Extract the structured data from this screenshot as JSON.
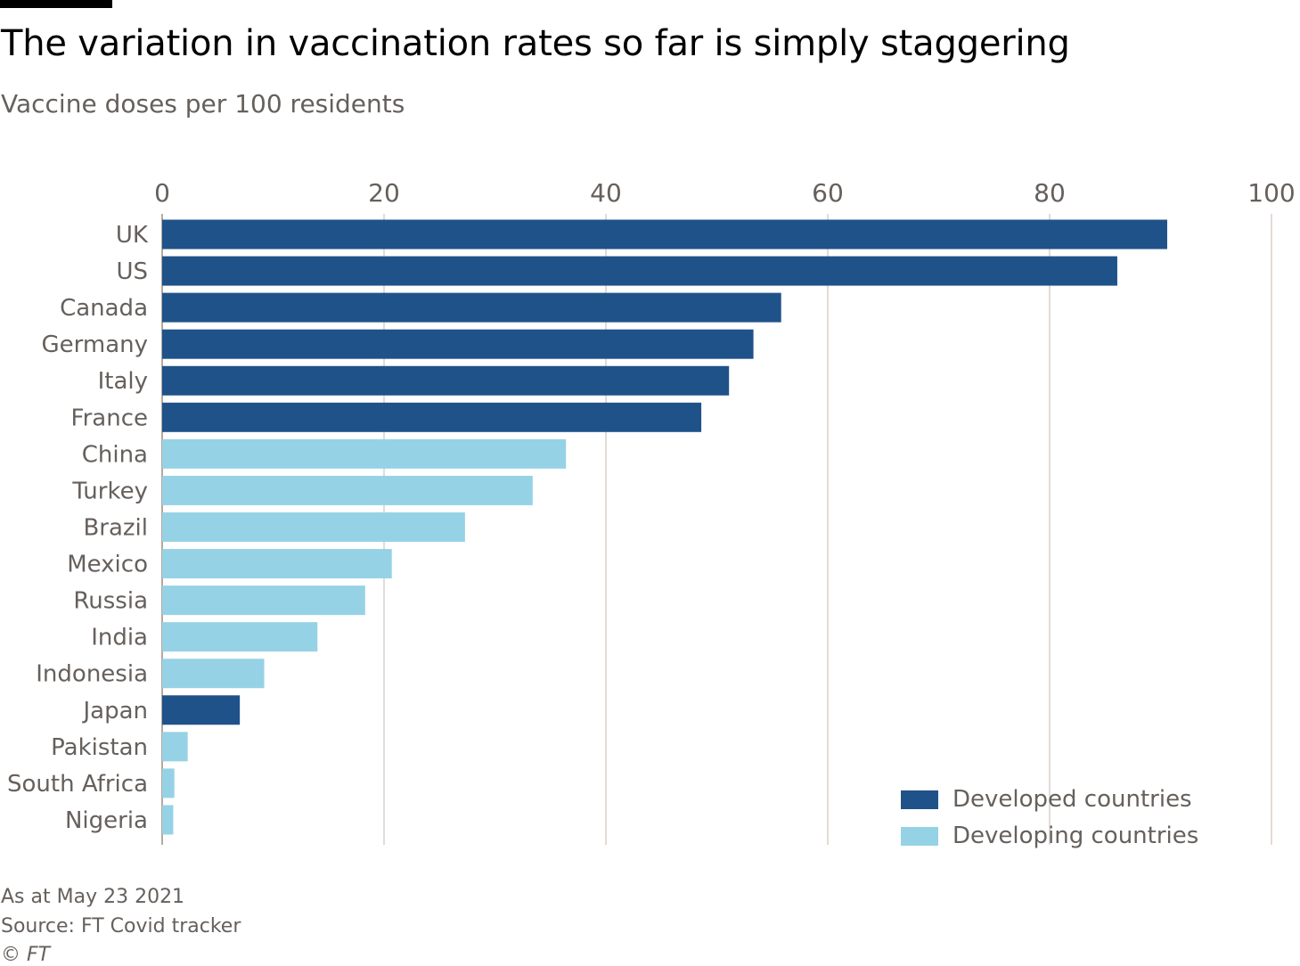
{
  "header": {
    "title": "The variation in vaccination rates so far is simply staggering",
    "subtitle": "Vaccine doses per 100 residents"
  },
  "footer": {
    "date_note": "As at May 23 2021",
    "source": "Source: FT Covid tracker",
    "copyright": "© FT"
  },
  "legend": [
    {
      "label": "Developed countries",
      "color": "#1f5289"
    },
    {
      "label": "Developing countries",
      "color": "#96d2e6"
    }
  ],
  "chart_data": {
    "type": "bar",
    "orientation": "horizontal",
    "title": "The variation in vaccination rates so far is simply staggering",
    "subtitle": "Vaccine doses per 100 residents",
    "xlim": [
      0,
      100
    ],
    "xticks": [
      0,
      20,
      40,
      60,
      80,
      100
    ],
    "grid": true,
    "legend_position": "bottom-right",
    "categories": [
      "UK",
      "US",
      "Canada",
      "Germany",
      "Italy",
      "France",
      "China",
      "Turkey",
      "Brazil",
      "Mexico",
      "Russia",
      "India",
      "Indonesia",
      "Japan",
      "Pakistan",
      "South Africa",
      "Nigeria"
    ],
    "values": [
      90.6,
      86.1,
      55.8,
      53.3,
      51.1,
      48.6,
      36.4,
      33.4,
      27.3,
      20.7,
      18.3,
      14.0,
      9.2,
      7.0,
      2.3,
      1.1,
      1.0
    ],
    "groups": [
      "Developed countries",
      "Developed countries",
      "Developed countries",
      "Developed countries",
      "Developed countries",
      "Developed countries",
      "Developing countries",
      "Developing countries",
      "Developing countries",
      "Developing countries",
      "Developing countries",
      "Developing countries",
      "Developing countries",
      "Developed countries",
      "Developing countries",
      "Developing countries",
      "Developing countries"
    ]
  }
}
